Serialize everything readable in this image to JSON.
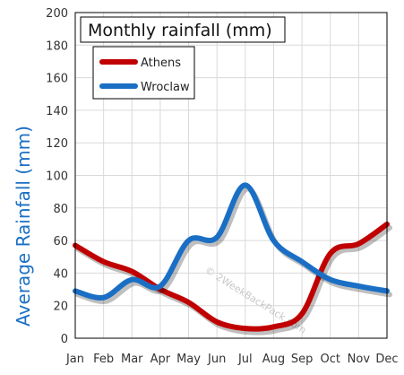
{
  "chart_data": {
    "type": "line",
    "title": "Monthly rainfall (mm)",
    "ylabel": "Average Rainfall (mm)",
    "xlabel": "",
    "categories": [
      "Jan",
      "Feb",
      "Mar",
      "Apr",
      "May",
      "Jun",
      "Jul",
      "Aug",
      "Sep",
      "Oct",
      "Nov",
      "Dec"
    ],
    "ylim": [
      0,
      200
    ],
    "yticks": [
      "0",
      "20",
      "40",
      "60",
      "80",
      "100",
      "120",
      "140",
      "160",
      "180",
      "200"
    ],
    "grid": true,
    "legend_position": "top-left",
    "series": [
      {
        "name": "Athens",
        "color": "#c00000",
        "values": [
          57,
          47,
          41,
          30,
          22,
          10,
          6,
          7,
          15,
          52,
          58,
          70
        ]
      },
      {
        "name": "Wroclaw",
        "color": "#1a6fc4",
        "values": [
          29,
          25,
          36,
          32,
          60,
          62,
          94,
          60,
          47,
          36,
          32,
          29
        ]
      }
    ],
    "watermark": "© 2WeekBackPack.com"
  }
}
